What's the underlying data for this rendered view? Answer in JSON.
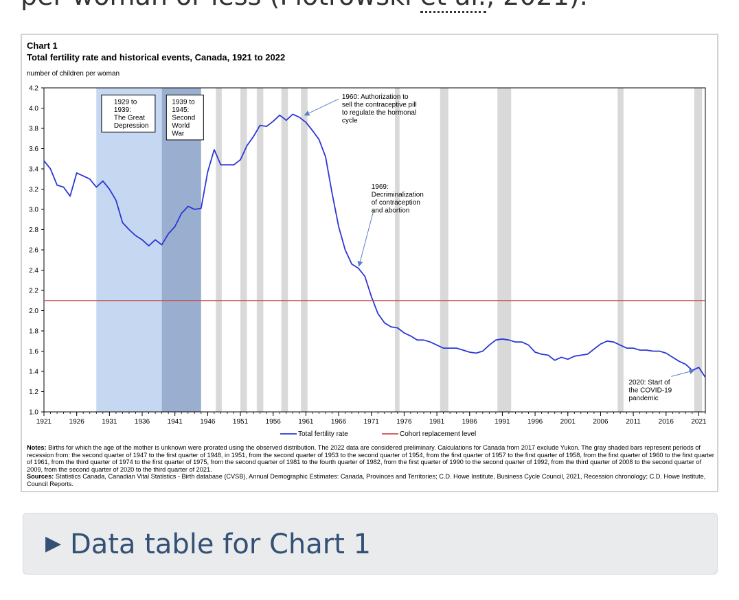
{
  "article": {
    "top_text_prefix": "per woman or less (Piotrowski ",
    "top_text_abbr": "et al.",
    "top_text_suffix": ", 2021)."
  },
  "chart_data": {
    "type": "line",
    "label": "Chart 1",
    "title": "Total fertility rate and historical events, Canada, 1921 to 2022",
    "ylabel": "number of children per woman",
    "xlabel": "",
    "ylim": [
      1.0,
      4.2
    ],
    "xlim": [
      1921,
      2022
    ],
    "yticks": [
      "1.0",
      "1.2",
      "1.4",
      "1.6",
      "1.8",
      "2.0",
      "2.2",
      "2.4",
      "2.6",
      "2.8",
      "3.0",
      "3.2",
      "3.4",
      "3.6",
      "3.8",
      "4.0",
      "4.2"
    ],
    "xticks": [
      "1921",
      "1926",
      "1931",
      "1936",
      "1941",
      "1946",
      "1951",
      "1956",
      "1961",
      "1966",
      "1971",
      "1976",
      "1981",
      "1986",
      "1991",
      "1996",
      "2001",
      "2006",
      "2011",
      "2016",
      "2021"
    ],
    "grid": false,
    "legend_position": "bottom-center",
    "series": [
      {
        "name": "Total fertility rate",
        "color": "#2c36d6",
        "x": [
          1921,
          1922,
          1923,
          1924,
          1925,
          1926,
          1927,
          1928,
          1929,
          1930,
          1931,
          1932,
          1933,
          1934,
          1935,
          1936,
          1937,
          1938,
          1939,
          1940,
          1941,
          1942,
          1943,
          1944,
          1945,
          1946,
          1947,
          1948,
          1949,
          1950,
          1951,
          1952,
          1953,
          1954,
          1955,
          1956,
          1957,
          1958,
          1959,
          1960,
          1961,
          1962,
          1963,
          1964,
          1965,
          1966,
          1967,
          1968,
          1969,
          1970,
          1971,
          1972,
          1973,
          1974,
          1975,
          1976,
          1977,
          1978,
          1979,
          1980,
          1981,
          1982,
          1983,
          1984,
          1985,
          1986,
          1987,
          1988,
          1989,
          1990,
          1991,
          1992,
          1993,
          1994,
          1995,
          1996,
          1997,
          1998,
          1999,
          2000,
          2001,
          2002,
          2003,
          2004,
          2005,
          2006,
          2007,
          2008,
          2009,
          2010,
          2011,
          2012,
          2013,
          2014,
          2015,
          2016,
          2017,
          2018,
          2019,
          2020,
          2021,
          2022
        ],
        "values": [
          3.48,
          3.4,
          3.24,
          3.22,
          3.13,
          3.36,
          3.33,
          3.3,
          3.22,
          3.28,
          3.2,
          3.09,
          2.87,
          2.8,
          2.74,
          2.7,
          2.64,
          2.7,
          2.65,
          2.76,
          2.83,
          2.96,
          3.03,
          3.0,
          3.01,
          3.37,
          3.59,
          3.44,
          3.44,
          3.44,
          3.49,
          3.63,
          3.72,
          3.83,
          3.82,
          3.87,
          3.93,
          3.88,
          3.94,
          3.91,
          3.86,
          3.78,
          3.69,
          3.52,
          3.16,
          2.83,
          2.6,
          2.46,
          2.42,
          2.34,
          2.14,
          1.97,
          1.88,
          1.84,
          1.83,
          1.78,
          1.75,
          1.71,
          1.71,
          1.69,
          1.66,
          1.63,
          1.63,
          1.63,
          1.61,
          1.59,
          1.58,
          1.6,
          1.66,
          1.71,
          1.72,
          1.71,
          1.69,
          1.69,
          1.66,
          1.59,
          1.57,
          1.56,
          1.51,
          1.54,
          1.52,
          1.55,
          1.56,
          1.57,
          1.62,
          1.67,
          1.7,
          1.69,
          1.66,
          1.63,
          1.63,
          1.61,
          1.61,
          1.6,
          1.6,
          1.58,
          1.54,
          1.5,
          1.47,
          1.41,
          1.44,
          1.34
        ]
      },
      {
        "name": "Cohort replacement level",
        "color": "#c8504b",
        "x": [
          1921,
          2022
        ],
        "values": [
          2.1,
          2.1
        ]
      }
    ],
    "shaded_periods": [
      {
        "start": 1929,
        "end": 1939,
        "color": "#c5d7f1",
        "label": "1929 to 1939: The Great Depression"
      },
      {
        "start": 1939,
        "end": 1945,
        "color": "#9aafd0",
        "label": "1939 to 1945: Second World War"
      }
    ],
    "recession_bars": [
      {
        "start": 1947.25,
        "end": 1948.15
      },
      {
        "start": 1951.0,
        "end": 1952.0
      },
      {
        "start": 1953.5,
        "end": 1954.5
      },
      {
        "start": 1957.25,
        "end": 1958.25
      },
      {
        "start": 1960.25,
        "end": 1961.25
      },
      {
        "start": 1974.6,
        "end": 1975.3
      },
      {
        "start": 1981.5,
        "end": 1982.75
      },
      {
        "start": 1990.25,
        "end": 1992.35
      },
      {
        "start": 2008.6,
        "end": 2009.5
      },
      {
        "start": 2020.3,
        "end": 2021.5
      }
    ],
    "recession_color": "#d9d9d9",
    "boxed_labels": [
      {
        "id": "depression",
        "lines": [
          "1929 to",
          "1939:",
          "The Great",
          "Depression"
        ],
        "x": 1929.8,
        "y": 4.13
      },
      {
        "id": "ww2",
        "lines": [
          "1939 to",
          "1945:",
          "Second",
          "World",
          "War"
        ],
        "x": 1939.7,
        "y": 4.13
      }
    ],
    "annotations": [
      {
        "id": "pill-1960",
        "lines": [
          "1960: Authorization to",
          "sell the contraceptive pill",
          "to regulate the hormonal",
          "cycle"
        ],
        "x": 1966.5,
        "y": 4.12,
        "arrow_from": [
          1966.0,
          4.09
        ],
        "arrow_to": [
          1960.8,
          3.93
        ]
      },
      {
        "id": "decrim-1969",
        "lines": [
          "1969:",
          "Decriminalization",
          "of contraception",
          "and abortion"
        ],
        "x": 1971.0,
        "y": 3.23,
        "arrow_from": [
          1971.3,
          2.98
        ],
        "arrow_to": [
          1969.1,
          2.44
        ]
      },
      {
        "id": "covid-2020",
        "lines": [
          "2020: Start of",
          "the COVID-19",
          "pandemic"
        ],
        "x": 2010.3,
        "y": 1.3,
        "arrow_from": [
          2016.8,
          1.35
        ],
        "arrow_to": [
          2020.3,
          1.41
        ]
      }
    ]
  },
  "notes": {
    "notes_label": "Notes:",
    "notes_text": " Births for which the age of the mother is unknown were prorated using the observed distribution. The 2022 data are considered preliminary. Calculations for Canada from 2017 exclude Yukon. The gray shaded bars represent periods of recession from: the second quarter of 1947 to the first quarter of 1948, in 1951, from the second quarter of 1953 to the second quarter of 1954, from the first quarter of 1957 to the first quarter of 1958, from the first quarter of 1960 to the first quarter of 1961, from the third quarter of 1974 to the first quarter of 1975, from the second quarter of 1981 to the fourth quarter of 1982, from the first quarter of 1990 to the second quarter of 1992, from the third quarter of 2008 to the second quarter of 2009, from the second quarter of 2020 to the third quarter of 2021.",
    "sources_label": "Sources:",
    "sources_text": " Statistics Canada, Canadian Vital Statistics - Birth database (CVSB), Annual Demographic Estimates: Canada, Provinces and Territories; C.D. Howe Institute, Business Cycle Council, 2021, Recession chronology; C.D. Howe Institute, Council Reports."
  },
  "details": {
    "arrow": "▶",
    "label": "Data table for Chart 1"
  }
}
